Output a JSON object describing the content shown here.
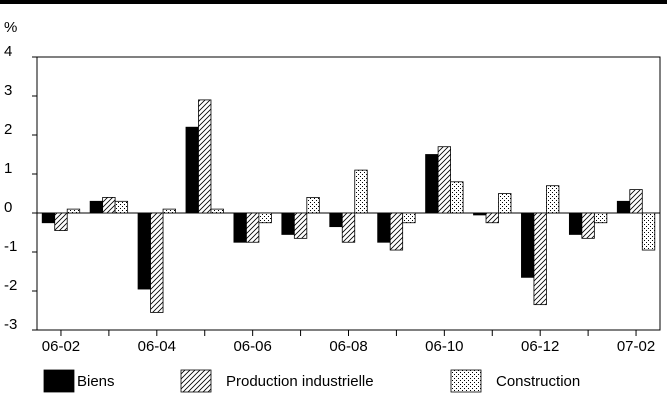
{
  "chart_data": {
    "type": "bar",
    "unit_label": "%",
    "categories": [
      "06-02",
      "06-03",
      "06-04",
      "06-05",
      "06-06",
      "06-07",
      "06-08",
      "06-09",
      "06-10",
      "06-11",
      "06-12",
      "07-01",
      "07-02"
    ],
    "x_tick_labels": [
      "06-02",
      "06-04",
      "06-06",
      "06-08",
      "06-10",
      "06-12",
      "07-02"
    ],
    "ylim": [
      -3,
      4
    ],
    "y_ticks": [
      -3,
      -2,
      -1,
      0,
      1,
      2,
      3,
      4
    ],
    "grid": false,
    "legend_position": "bottom",
    "series": [
      {
        "name": "Biens",
        "pattern": "solid",
        "color": "#000000",
        "values": [
          -0.25,
          0.3,
          -1.95,
          2.2,
          -0.75,
          -0.55,
          -0.35,
          -0.75,
          1.5,
          -0.05,
          -1.65,
          -0.55,
          0.3
        ]
      },
      {
        "name": "Production industrielle",
        "pattern": "diagonal-hatch",
        "color": "#000000",
        "values": [
          -0.45,
          0.4,
          -2.55,
          2.9,
          -0.75,
          -0.65,
          -0.75,
          -0.95,
          1.7,
          -0.25,
          -2.35,
          -0.65,
          0.6
        ]
      },
      {
        "name": "Construction",
        "pattern": "stipple",
        "color": "#000000",
        "values": [
          0.1,
          0.3,
          0.1,
          0.1,
          -0.25,
          0.4,
          1.1,
          -0.25,
          0.8,
          0.5,
          0.7,
          -0.25,
          -0.95
        ]
      }
    ]
  }
}
